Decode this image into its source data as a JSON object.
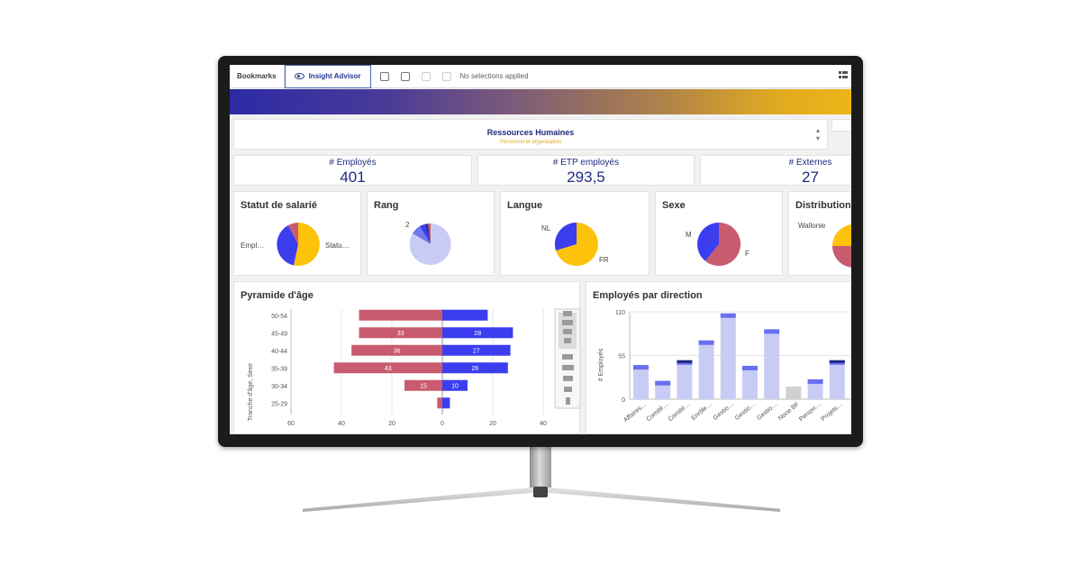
{
  "toolbar": {
    "bookmarks": "Bookmarks",
    "insight_advisor": "Insight Advisor",
    "no_selections": "No selections applied"
  },
  "header": {
    "title": "Ressources Humaines",
    "subtitle": "Personnel et organisation"
  },
  "kpis": [
    {
      "label": "# Employés",
      "value": "401"
    },
    {
      "label": "# ETP employés",
      "value": "293,5"
    },
    {
      "label": "# Externes",
      "value": "27"
    }
  ],
  "pies": [
    {
      "title": "Statut de salarié",
      "labels": [
        "Empl…",
        "Statu…"
      ]
    },
    {
      "title": "Rang",
      "labels": [
        "2"
      ]
    },
    {
      "title": "Langue",
      "labels": [
        "NL",
        "FR"
      ]
    },
    {
      "title": "Sexe",
      "labels": [
        "M",
        "F"
      ]
    },
    {
      "title": "Distribution p",
      "labels": [
        "Wallonie"
      ]
    }
  ],
  "colors": {
    "blue": "#3d3df0",
    "red": "#c95b6f",
    "yellow": "#fdc20a",
    "lavender": "#c8ccf5",
    "navy": "#1f2a80"
  },
  "pyramid": {
    "title": "Pyramide d'âge",
    "ylabel": "Tranche d'âge, Sexe"
  },
  "direction": {
    "title": "Employés par direction",
    "ylabel": "# Employés"
  },
  "chart_data": [
    {
      "type": "bar",
      "title": "Pyramide d'âge",
      "ylabel": "Tranche d'âge, Sexe",
      "categories": [
        "50-54",
        "45-49",
        "40-44",
        "35-39",
        "30-34",
        "25-29"
      ],
      "series": [
        {
          "values": [
            33,
            33,
            36,
            43,
            15,
            2
          ]
        },
        {
          "values": [
            18,
            28,
            27,
            26,
            10,
            3
          ]
        }
      ],
      "data_labels_left": [
        "",
        "33",
        "36",
        "43",
        "15",
        ""
      ],
      "data_labels_right": [
        "",
        "28",
        "27",
        "26",
        "10",
        ""
      ],
      "xticks": [
        "60",
        "40",
        "20",
        "0",
        "20",
        "40"
      ],
      "xlim": [
        -60,
        40
      ]
    },
    {
      "type": "bar",
      "title": "Employés par direction",
      "ylabel": "# Employés",
      "categories": [
        "Affaires…",
        "Comité…",
        "Comité…",
        "Enrôle…",
        "Gestio…",
        "Gestio…",
        "Gestio…",
        "None BF",
        "Person…",
        "Projets…"
      ],
      "values": [
        43,
        23,
        49,
        74,
        108,
        42,
        88,
        16,
        25,
        49
      ],
      "yticks": [
        "0",
        "55",
        "110"
      ],
      "ylim": [
        0,
        110
      ]
    }
  ]
}
